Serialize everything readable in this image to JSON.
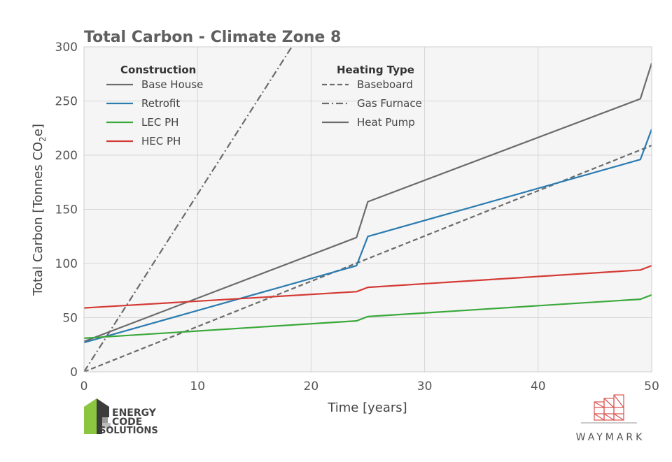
{
  "chart_data": {
    "type": "line",
    "title": "Total Carbon - Climate Zone 8",
    "xlabel": "Time [years]",
    "ylabel_main": "Total Carbon [Tonnes CO",
    "ylabel_sub": "2",
    "ylabel_end": "e]",
    "xlim": [
      0,
      50
    ],
    "ylim": [
      0,
      300
    ],
    "xticks": [
      "0",
      "10",
      "20",
      "30",
      "40",
      "50"
    ],
    "yticks": [
      "0",
      "50",
      "100",
      "150",
      "200",
      "250",
      "300"
    ],
    "legend_construction": {
      "heading": "Construction",
      "entries": [
        {
          "label": "Base House",
          "color": "#6b6b6b"
        },
        {
          "label": "Retrofit",
          "color": "#2b7bb0"
        },
        {
          "label": "LEC PH",
          "color": "#3aa83a"
        },
        {
          "label": "HEC PH",
          "color": "#d43a35"
        }
      ]
    },
    "legend_heating": {
      "heading": "Heating Type",
      "entries": [
        {
          "label": "Baseboard",
          "style": "dashed"
        },
        {
          "label": "Gas Furnace",
          "style": "dashdot"
        },
        {
          "label": "Heat Pump",
          "style": "solid"
        }
      ]
    },
    "series": [
      {
        "name": "Base House (Gas Furnace)",
        "color": "#6b6b6b",
        "style": "dashdot",
        "x": [
          0,
          18.3
        ],
        "y": [
          0,
          300
        ]
      },
      {
        "name": "Base House (Baseboard)",
        "color": "#6b6b6b",
        "style": "dashed",
        "x": [
          0,
          50
        ],
        "y": [
          0,
          209
        ]
      },
      {
        "name": "Base House (Heat Pump)",
        "color": "#6b6b6b",
        "style": "solid",
        "x": [
          0,
          24,
          25,
          49,
          50
        ],
        "y": [
          28,
          124,
          157,
          252,
          285
        ]
      },
      {
        "name": "Retrofit (Heat Pump)",
        "color": "#2b7bb0",
        "style": "solid",
        "x": [
          0,
          24,
          25,
          49,
          50
        ],
        "y": [
          27,
          98,
          125,
          196,
          224
        ]
      },
      {
        "name": "HEC PH (Heat Pump)",
        "color": "#d43a35",
        "style": "solid",
        "x": [
          0,
          24,
          25,
          49,
          50
        ],
        "y": [
          59,
          74,
          78,
          94,
          98
        ]
      },
      {
        "name": "LEC PH (Heat Pump)",
        "color": "#3aa83a",
        "style": "solid",
        "x": [
          0,
          24,
          25,
          49,
          50
        ],
        "y": [
          31,
          47,
          51,
          67,
          71
        ]
      }
    ]
  },
  "logos": {
    "energy_line1": "ENERGY",
    "energy_line2": "CODE",
    "energy_line3": "SOLUTIONS",
    "waymark": "WAYMARK"
  }
}
